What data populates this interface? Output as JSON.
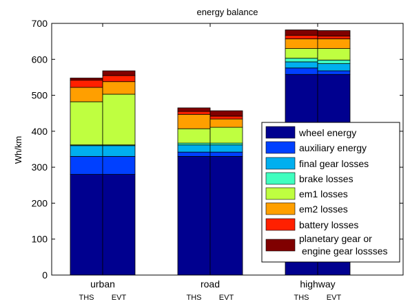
{
  "chart_data": {
    "type": "bar",
    "stacked": true,
    "title": "energy balance",
    "xlabel": "",
    "ylabel": "Wh/km",
    "ylim": [
      0,
      700
    ],
    "yticks": [
      0,
      100,
      200,
      300,
      400,
      500,
      600,
      700
    ],
    "grid": false,
    "legend_position": "right",
    "groups": [
      {
        "name": "urban",
        "bars": [
          "THS",
          "EVT"
        ]
      },
      {
        "name": "road",
        "bars": [
          "THS",
          "EVT"
        ]
      },
      {
        "name": "highway",
        "bars": [
          "THS",
          "EVT"
        ]
      }
    ],
    "series": [
      {
        "name": "wheel energy",
        "color": "#00008f",
        "values": [
          280,
          280,
          330,
          330,
          558,
          558
        ]
      },
      {
        "name": "auxiliary energy",
        "color": "#0040ff",
        "values": [
          50,
          50,
          12,
          12,
          18,
          10
        ]
      },
      {
        "name": "final gear losses",
        "color": "#00afef",
        "values": [
          30,
          30,
          20,
          20,
          17,
          20
        ]
      },
      {
        "name": "brake losses",
        "color": "#40ffbf",
        "values": [
          2,
          2,
          5,
          5,
          10,
          10
        ]
      },
      {
        "name": "em1 losses",
        "color": "#bfff40",
        "values": [
          120,
          141,
          40,
          44,
          27,
          32
        ]
      },
      {
        "name": "em2 losses",
        "color": "#ff9f00",
        "values": [
          40,
          35,
          40,
          23,
          27,
          27
        ]
      },
      {
        "name": "battery losses",
        "color": "#ff2000",
        "values": [
          20,
          17,
          8,
          8,
          10,
          8
        ]
      },
      {
        "name": "planetary gear or engine gear lossses",
        "color": "#800000",
        "values": [
          6,
          13,
          10,
          15,
          15,
          15
        ]
      }
    ]
  },
  "legend_lines": [
    [
      "wheel energy"
    ],
    [
      "auxiliary energy"
    ],
    [
      "final gear losses"
    ],
    [
      "brake losses"
    ],
    [
      "em1 losses"
    ],
    [
      "em2 losses"
    ],
    [
      "battery losses"
    ],
    [
      "planetary gear or",
      "engine gear lossses"
    ]
  ]
}
